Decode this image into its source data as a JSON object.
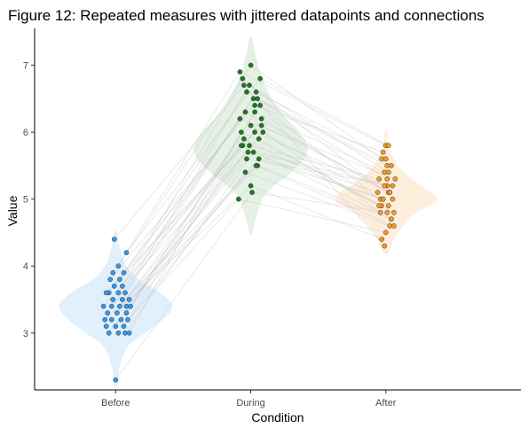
{
  "chart_data": {
    "type": "scatter",
    "subtype": "violin-jitter-paired",
    "title": "Figure 12: Repeated measures with jittered datapoints and connections",
    "xlabel": "Condition",
    "ylabel": "Value",
    "categories": [
      "Before",
      "During",
      "After"
    ],
    "ylim": [
      2.15,
      7.55
    ],
    "yticks": [
      3,
      4,
      5,
      6,
      7
    ],
    "grid": false,
    "legend": "none",
    "colors": {
      "Before": {
        "point": "#3399ee",
        "violin": "#cfe6fb"
      },
      "During": {
        "point": "#1e7a1e",
        "violin": "#d4e8d4"
      },
      "After": {
        "point": "#f59a23",
        "violin": "#fde3c4"
      },
      "connection": "#bdbdbd"
    },
    "violins": {
      "Before": {
        "y": [
          2.2,
          2.5,
          2.8,
          3.0,
          3.2,
          3.4,
          3.6,
          3.8,
          4.0,
          4.2,
          4.5
        ],
        "halfwidth": [
          0.01,
          0.03,
          0.09,
          0.22,
          0.35,
          0.42,
          0.33,
          0.17,
          0.08,
          0.04,
          0.01
        ]
      },
      "During": {
        "y": [
          4.5,
          4.8,
          5.1,
          5.4,
          5.7,
          6.0,
          6.3,
          6.6,
          6.9,
          7.2,
          7.4
        ],
        "halfwidth": [
          0.01,
          0.05,
          0.12,
          0.3,
          0.42,
          0.36,
          0.22,
          0.13,
          0.07,
          0.03,
          0.01
        ]
      },
      "After": {
        "y": [
          4.2,
          4.4,
          4.6,
          4.8,
          5.0,
          5.2,
          5.4,
          5.6,
          5.8,
          6.0
        ],
        "halfwidth": [
          0.02,
          0.06,
          0.13,
          0.23,
          0.38,
          0.26,
          0.13,
          0.06,
          0.02,
          0.01
        ]
      }
    },
    "subjects": [
      {
        "before": 2.3,
        "during": 5.1,
        "after": 4.8,
        "jb": 0.0,
        "jd": 0.01,
        "ja": 0.01
      },
      {
        "before": 3.0,
        "during": 5.6,
        "after": 5.0,
        "jb": -0.05,
        "jd": 0.06,
        "ja": -0.02
      },
      {
        "before": 3.0,
        "during": 5.4,
        "after": 4.6,
        "jb": 0.02,
        "jd": -0.04,
        "ja": 0.03
      },
      {
        "before": 3.0,
        "during": 5.7,
        "after": 5.2,
        "jb": 0.07,
        "jd": 0.02,
        "ja": 0.01
      },
      {
        "before": 3.0,
        "during": 6.0,
        "after": 4.9,
        "jb": 0.1,
        "jd": -0.07,
        "ja": -0.03
      },
      {
        "before": 3.1,
        "during": 5.5,
        "after": 4.7,
        "jb": -0.07,
        "jd": 0.05,
        "ja": 0.04
      },
      {
        "before": 3.1,
        "during": 5.8,
        "after": 5.3,
        "jb": 0.0,
        "jd": -0.01,
        "ja": -0.05
      },
      {
        "before": 3.1,
        "during": 6.2,
        "after": 5.1,
        "jb": 0.06,
        "jd": 0.08,
        "ja": 0.02
      },
      {
        "before": 3.2,
        "during": 5.9,
        "after": 4.8,
        "jb": -0.03,
        "jd": -0.05,
        "ja": 0.06
      },
      {
        "before": 3.2,
        "during": 6.3,
        "after": 5.4,
        "jb": 0.04,
        "jd": 0.03,
        "ja": -0.01
      },
      {
        "before": 3.2,
        "during": 5.0,
        "after": 4.5,
        "jb": 0.09,
        "jd": -0.09,
        "ja": 0.0
      },
      {
        "before": 3.3,
        "during": 6.1,
        "after": 5.0,
        "jb": -0.06,
        "jd": 0.0,
        "ja": -0.04
      },
      {
        "before": 3.3,
        "during": 5.6,
        "after": 5.2,
        "jb": 0.01,
        "jd": -0.03,
        "ja": 0.05
      },
      {
        "before": 3.3,
        "during": 6.4,
        "after": 4.9,
        "jb": 0.08,
        "jd": 0.07,
        "ja": 0.02
      },
      {
        "before": 3.4,
        "during": 5.8,
        "after": 5.1,
        "jb": -0.09,
        "jd": -0.06,
        "ja": -0.06
      },
      {
        "before": 3.4,
        "during": 6.5,
        "after": 5.5,
        "jb": -0.03,
        "jd": 0.02,
        "ja": 0.01
      },
      {
        "before": 3.4,
        "during": 6.0,
        "after": 4.7,
        "jb": 0.03,
        "jd": 0.09,
        "ja": 0.04
      },
      {
        "before": 3.4,
        "during": 5.7,
        "after": 5.0,
        "jb": 0.08,
        "jd": -0.02,
        "ja": -0.02
      },
      {
        "before": 3.5,
        "during": 6.2,
        "after": 5.3,
        "jb": -0.02,
        "jd": -0.08,
        "ja": 0.07
      },
      {
        "before": 3.5,
        "during": 6.6,
        "after": 5.6,
        "jb": 0.05,
        "jd": 0.04,
        "ja": 0.0
      },
      {
        "before": 3.5,
        "during": 5.2,
        "after": 4.4,
        "jb": 0.1,
        "jd": 0.0,
        "ja": -0.03
      },
      {
        "before": 3.6,
        "during": 6.3,
        "after": 5.1,
        "jb": -0.05,
        "jd": -0.04,
        "ja": 0.03
      },
      {
        "before": 3.6,
        "during": 5.9,
        "after": 4.9,
        "jb": 0.02,
        "jd": 0.06,
        "ja": -0.05
      },
      {
        "before": 3.6,
        "during": 6.7,
        "after": 5.4,
        "jb": 0.07,
        "jd": -0.01,
        "ja": 0.02
      },
      {
        "before": 3.7,
        "during": 6.1,
        "after": 5.2,
        "jb": -0.01,
        "jd": 0.08,
        "ja": -0.01
      },
      {
        "before": 3.7,
        "during": 6.8,
        "after": 5.0,
        "jb": 0.05,
        "jd": -0.06,
        "ja": 0.05
      },
      {
        "before": 3.8,
        "during": 6.4,
        "after": 5.7,
        "jb": -0.04,
        "jd": 0.03,
        "ja": -0.02
      },
      {
        "before": 3.8,
        "during": 6.6,
        "after": 5.3,
        "jb": 0.03,
        "jd": -0.03,
        "ja": 0.01
      },
      {
        "before": 3.9,
        "during": 6.9,
        "after": 5.8,
        "jb": -0.02,
        "jd": -0.08,
        "ja": 0.0
      },
      {
        "before": 3.9,
        "during": 6.5,
        "after": 5.5,
        "jb": 0.06,
        "jd": 0.05,
        "ja": 0.04
      },
      {
        "before": 4.0,
        "during": 7.0,
        "after": 5.6,
        "jb": 0.02,
        "jd": 0.0,
        "ja": -0.03
      },
      {
        "before": 4.2,
        "during": 6.8,
        "after": 5.8,
        "jb": 0.08,
        "jd": 0.07,
        "ja": 0.02
      },
      {
        "before": 4.4,
        "during": 6.7,
        "after": 4.3,
        "jb": -0.01,
        "jd": -0.05,
        "ja": -0.01
      },
      {
        "before": 3.2,
        "during": 5.5,
        "after": 4.6,
        "jb": -0.08,
        "jd": 0.04,
        "ja": 0.06
      },
      {
        "before": 3.4,
        "during": 5.8,
        "after": 4.8,
        "jb": 0.11,
        "jd": -0.07,
        "ja": -0.04
      },
      {
        "before": 3.6,
        "during": 6.0,
        "after": 5.1,
        "jb": -0.07,
        "jd": 0.03,
        "ja": 0.03
      }
    ]
  }
}
